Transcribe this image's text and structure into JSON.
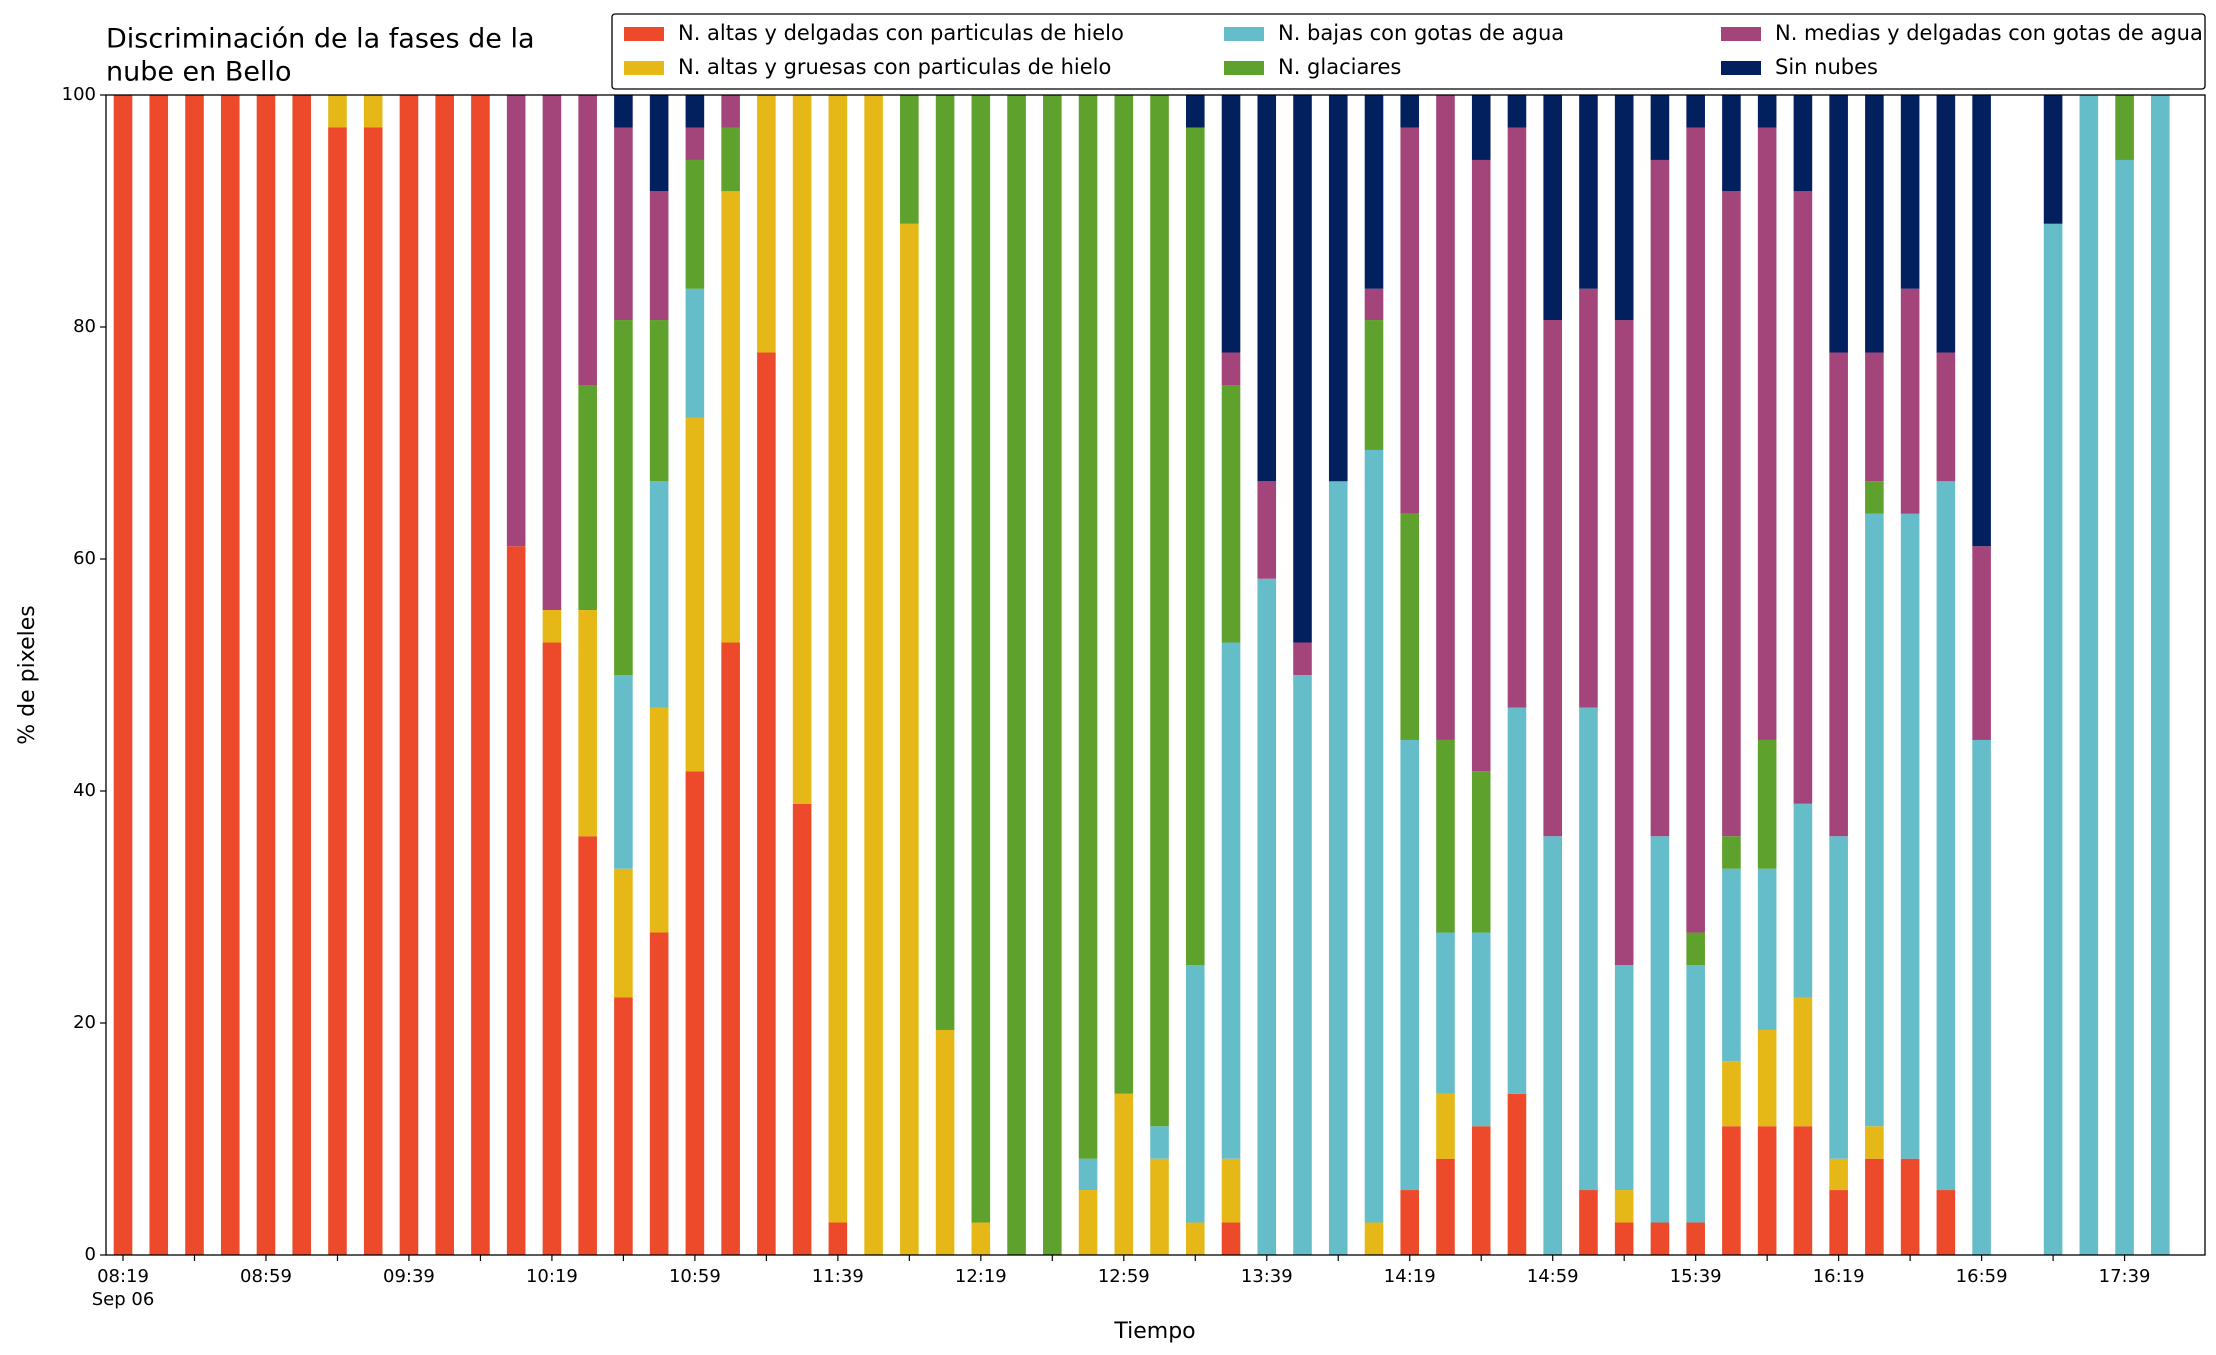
{
  "chart_data": {
    "type": "stacked_bar",
    "title": [
      "Discriminación de la fases de la",
      "nube en Bello"
    ],
    "x_label": "Tiempo",
    "y_label": "% de pixeles",
    "date_label": "Sep 06",
    "categories": [
      "08:19",
      null,
      null,
      null,
      "08:59",
      null,
      null,
      null,
      "09:39",
      null,
      null,
      null,
      "10:19",
      null,
      null,
      null,
      "10:59",
      null,
      null,
      null,
      "11:39",
      null,
      null,
      null,
      "12:19",
      null,
      null,
      null,
      "12:59",
      null,
      null,
      null,
      "13:39",
      null,
      null,
      null,
      "14:19",
      null,
      null,
      null,
      "14:59",
      null,
      null,
      null,
      "15:39",
      null,
      null,
      null,
      "16:19",
      null,
      null,
      null,
      "16:59",
      null,
      null,
      null,
      "17:39",
      null
    ],
    "ylim": [
      0,
      100
    ],
    "yticks": [
      0,
      20,
      40,
      60,
      80,
      100
    ],
    "legend_position": "top",
    "series": [
      {
        "name": "N. altas y delgadas con particulas de hielo",
        "color": "#ec4a2b",
        "values": [
          100,
          100,
          100,
          100,
          100,
          100,
          97.2,
          97.2,
          100,
          100,
          100,
          61.1,
          52.8,
          36.1,
          22.2,
          27.8,
          41.7,
          52.8,
          77.8,
          38.9,
          2.8,
          0,
          0,
          0,
          0,
          0,
          0,
          0,
          0,
          0,
          0,
          2.8,
          0,
          0,
          0,
          0,
          5.6,
          8.3,
          11.1,
          13.9,
          0,
          5.6,
          2.8,
          2.8,
          2.8,
          11.1,
          11.1,
          11.1,
          5.6,
          8.3,
          8.3,
          5.6,
          0,
          0,
          0,
          0,
          0,
          0
        ]
      },
      {
        "name": "N. altas y gruesas con particulas de hielo",
        "color": "#e5b817",
        "values": [
          0,
          0,
          0,
          0,
          0,
          0,
          2.8,
          2.8,
          0,
          0,
          0,
          0,
          2.8,
          19.5,
          11.1,
          19.4,
          30.5,
          38.9,
          22.2,
          61.1,
          97.2,
          100,
          88.9,
          19.4,
          2.8,
          0,
          0,
          5.6,
          13.9,
          8.3,
          2.8,
          5.5,
          0,
          0,
          0,
          2.8,
          0,
          5.6,
          0,
          0,
          0,
          0,
          2.8,
          0,
          0,
          5.6,
          8.3,
          11.1,
          2.7,
          2.8,
          0,
          0,
          0,
          0,
          0,
          0,
          0,
          0
        ]
      },
      {
        "name": "N. bajas con gotas de agua",
        "color": "#65bdc9",
        "values": [
          0,
          0,
          0,
          0,
          0,
          0,
          0,
          0,
          0,
          0,
          0,
          0,
          0,
          0,
          16.7,
          19.5,
          11.1,
          0,
          0,
          0,
          0,
          0,
          0,
          0,
          0,
          0,
          0,
          2.7,
          0,
          2.8,
          22.2,
          44.5,
          58.3,
          50,
          66.7,
          66.6,
          38.8,
          13.9,
          16.7,
          33.3,
          36.1,
          41.6,
          19.4,
          33.3,
          22.2,
          16.6,
          13.9,
          16.7,
          27.8,
          52.8,
          55.6,
          61.1,
          44.4,
          0,
          88.9,
          100,
          94.4,
          100
        ]
      },
      {
        "name": "N. glaciares",
        "color": "#5ea12d",
        "values": [
          0,
          0,
          0,
          0,
          0,
          0,
          0,
          0,
          0,
          0,
          0,
          0,
          0,
          19.4,
          30.6,
          13.9,
          11.1,
          5.5,
          0,
          0,
          0,
          0,
          11.1,
          80.6,
          97.2,
          100,
          100,
          91.7,
          86.1,
          88.9,
          72.2,
          22.2,
          0,
          0,
          0,
          11.2,
          19.5,
          16.6,
          13.9,
          0,
          0,
          0,
          0,
          0,
          2.8,
          2.8,
          11.1,
          0,
          0,
          2.8,
          0,
          0,
          0,
          0,
          0,
          0,
          5.6,
          0
        ]
      },
      {
        "name": "N. medias y delgadas con gotas de agua",
        "color": "#a3457a",
        "values": [
          0,
          0,
          0,
          0,
          0,
          0,
          0,
          0,
          0,
          0,
          0,
          38.9,
          44.4,
          25,
          16.6,
          11.1,
          2.8,
          2.8,
          0,
          0,
          0,
          0,
          0,
          0,
          0,
          0,
          0,
          0,
          0,
          0,
          0,
          2.8,
          8.4,
          2.8,
          0,
          2.7,
          33.3,
          55.6,
          52.7,
          50,
          44.5,
          36.1,
          55.6,
          58.3,
          69.4,
          55.6,
          52.8,
          52.8,
          41.7,
          11.1,
          19.4,
          11.1,
          16.7,
          0,
          0,
          0,
          0,
          0
        ]
      },
      {
        "name": "Sin nubes",
        "color": "#03205e",
        "values": [
          0,
          0,
          0,
          0,
          0,
          0,
          0,
          0,
          0,
          0,
          0,
          0,
          0,
          0,
          2.8,
          8.3,
          2.8,
          0,
          0,
          0,
          0,
          0,
          0,
          0,
          0,
          0,
          0,
          0,
          0,
          0,
          2.8,
          22.2,
          33.3,
          47.2,
          33.3,
          16.7,
          2.8,
          0,
          5.6,
          2.8,
          19.4,
          16.7,
          19.4,
          5.6,
          2.8,
          8.3,
          2.8,
          8.3,
          22.2,
          22.2,
          16.7,
          22.2,
          38.9,
          0,
          11.1,
          0,
          0,
          0
        ]
      }
    ]
  }
}
